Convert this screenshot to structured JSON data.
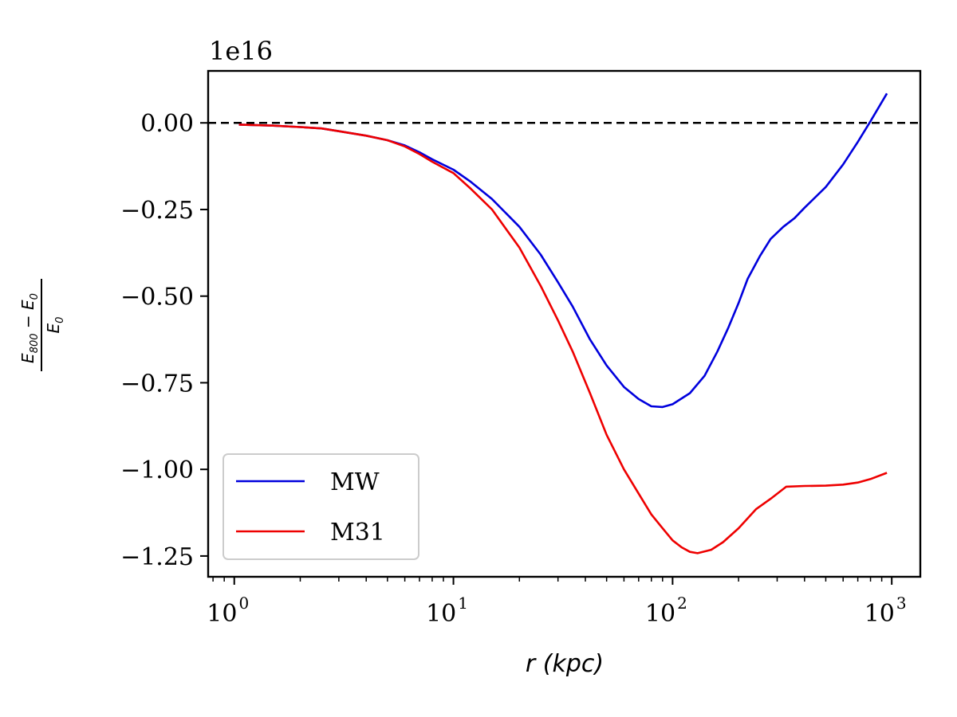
{
  "chart_data": {
    "type": "line",
    "x_scale": "log",
    "xlabel": "r (kpc)",
    "ylabel": "(E800 − E0) / E0",
    "y_offset_label": "1e16",
    "xlim": [
      0.76,
      1350
    ],
    "ylim": [
      -1.31,
      0.15
    ],
    "x_ticks": [
      {
        "value": 1,
        "label": "10",
        "exp": "0"
      },
      {
        "value": 10,
        "label": "10",
        "exp": "1"
      },
      {
        "value": 100,
        "label": "10",
        "exp": "2"
      },
      {
        "value": 1000,
        "label": "10",
        "exp": "3"
      }
    ],
    "y_ticks": [
      {
        "value": 0.0,
        "label": "0.00"
      },
      {
        "value": -0.25,
        "label": "−0.25"
      },
      {
        "value": -0.5,
        "label": "−0.50"
      },
      {
        "value": -0.75,
        "label": "−0.75"
      },
      {
        "value": -1.0,
        "label": "−1.00"
      },
      {
        "value": -1.25,
        "label": "−1.25"
      }
    ],
    "reference_line": {
      "y": 0.0,
      "style": "dashed",
      "color": "#000000"
    },
    "legend_position": "lower-left",
    "series": [
      {
        "name": "MW",
        "color": "#0000dd",
        "x": [
          1.05,
          1.5,
          2,
          2.5,
          3,
          4,
          5,
          6,
          7,
          8,
          10,
          12,
          15,
          20,
          25,
          30,
          35,
          42,
          50,
          60,
          70,
          80,
          90,
          100,
          120,
          140,
          160,
          180,
          200,
          220,
          250,
          280,
          320,
          360,
          400,
          500,
          600,
          700,
          800,
          950
        ],
        "y": [
          -0.005,
          -0.008,
          -0.012,
          -0.016,
          -0.024,
          -0.037,
          -0.05,
          -0.065,
          -0.085,
          -0.105,
          -0.135,
          -0.17,
          -0.22,
          -0.3,
          -0.38,
          -0.46,
          -0.53,
          -0.625,
          -0.7,
          -0.762,
          -0.797,
          -0.818,
          -0.82,
          -0.812,
          -0.78,
          -0.73,
          -0.66,
          -0.59,
          -0.52,
          -0.45,
          -0.385,
          -0.335,
          -0.3,
          -0.275,
          -0.245,
          -0.185,
          -0.12,
          -0.055,
          0.005,
          0.085
        ]
      },
      {
        "name": "M31",
        "color": "#ee0000",
        "x": [
          1.05,
          1.5,
          2,
          2.5,
          3,
          4,
          5,
          6,
          7,
          8,
          10,
          12,
          15,
          20,
          25,
          30,
          35,
          42,
          50,
          60,
          70,
          80,
          90,
          100,
          110,
          120,
          130,
          150,
          170,
          200,
          240,
          280,
          330,
          400,
          500,
          600,
          700,
          800,
          950
        ],
        "y": [
          -0.005,
          -0.008,
          -0.012,
          -0.016,
          -0.024,
          -0.037,
          -0.05,
          -0.068,
          -0.09,
          -0.112,
          -0.145,
          -0.19,
          -0.25,
          -0.36,
          -0.47,
          -0.57,
          -0.66,
          -0.78,
          -0.9,
          -1.0,
          -1.07,
          -1.13,
          -1.17,
          -1.205,
          -1.225,
          -1.238,
          -1.242,
          -1.232,
          -1.21,
          -1.17,
          -1.115,
          -1.085,
          -1.05,
          -1.048,
          -1.047,
          -1.044,
          -1.038,
          -1.028,
          -1.01
        ]
      }
    ]
  }
}
